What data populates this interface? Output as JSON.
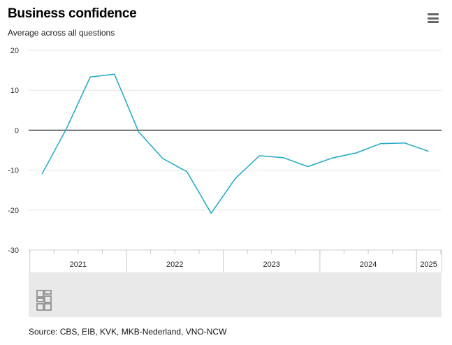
{
  "header": {
    "title": "Business confidence",
    "subtitle": "Average across all questions",
    "menu_icon": "hamburger-menu-icon"
  },
  "footer": {
    "source": "Source: CBS, EIB, KVK, MKB-Nederland, VNO-NCW",
    "logo_icon": "cbs-logo-icon"
  },
  "colors": {
    "line": "#1ea7c9",
    "zero_line": "#333333",
    "grid": "#e6e6e6",
    "navigator_bg": "#e9e9e9"
  },
  "chart_data": {
    "type": "line",
    "title": "Business confidence",
    "subtitle": "Average across all questions",
    "xlabel": "",
    "ylabel": "",
    "ylim": [
      -30,
      20
    ],
    "y_ticks": [
      20,
      10,
      0,
      -10,
      -20,
      -30
    ],
    "x_tick_labels": [
      "2021",
      "2022",
      "2023",
      "2024",
      "2025"
    ],
    "grid": true,
    "legend": "none",
    "series": [
      {
        "x": [
          "2021 Q1",
          "2021 Q2",
          "2021 Q3",
          "2021 Q4",
          "2022 Q1",
          "2022 Q2",
          "2022 Q3",
          "2022 Q4",
          "2023 Q1",
          "2023 Q2",
          "2023 Q3",
          "2023 Q4",
          "2024 Q1",
          "2024 Q2",
          "2024 Q3",
          "2024 Q4",
          "2025 Q1"
        ],
        "values": [
          -11.0,
          0.2,
          13.3,
          14.0,
          -0.4,
          -7.1,
          -10.4,
          -20.8,
          -12.1,
          -6.4,
          -6.9,
          -9.1,
          -7.0,
          -5.7,
          -3.4,
          -3.2,
          -5.3
        ]
      }
    ]
  }
}
